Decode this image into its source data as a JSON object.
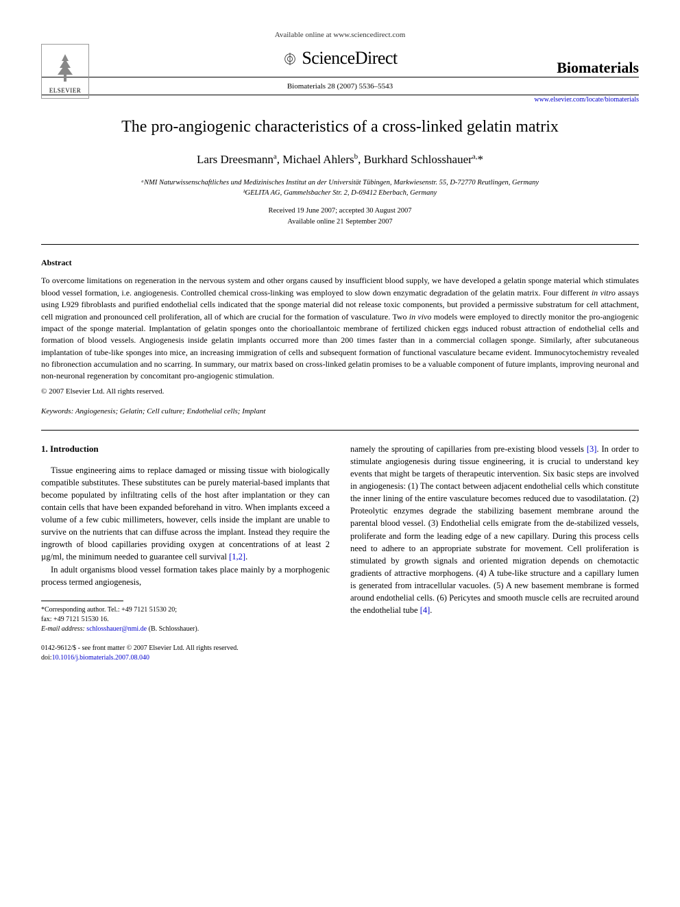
{
  "header": {
    "available_online": "Available online at www.sciencedirect.com",
    "sciencedirect": "ScienceDirect",
    "journal_ref": "Biomaterials 28 (2007) 5536–5543",
    "journal_brand": "Biomaterials",
    "journal_url": "www.elsevier.com/locate/biomaterials",
    "elsevier_label": "ELSEVIER"
  },
  "article": {
    "title": "The pro-angiogenic characteristics of a cross-linked gelatin matrix",
    "authors_html": "Lars Dreesmann<sup>a</sup>, Michael Ahlers<sup>b</sup>, Burkhard Schlosshauer<sup>a,</sup>*",
    "affiliations": [
      "ᵃNMI Naturwissenschaftliches und Medizinisches Institut an der Universität Tübingen, Markwiesenstr. 55, D-72770 Reutlingen, Germany",
      "ᵇGELITA AG, Gammelsbacher Str. 2, D-69412 Eberbach, Germany"
    ],
    "dates": [
      "Received 19 June 2007; accepted 30 August 2007",
      "Available online 21 September 2007"
    ]
  },
  "abstract": {
    "heading": "Abstract",
    "body": "To overcome limitations on regeneration in the nervous system and other organs caused by insufficient blood supply, we have developed a gelatin sponge material which stimulates blood vessel formation, i.e. angiogenesis. Controlled chemical cross-linking was employed to slow down enzymatic degradation of the gelatin matrix. Four different in vitro assays using L929 fibroblasts and purified endothelial cells indicated that the sponge material did not release toxic components, but provided a permissive substratum for cell attachment, cell migration and pronounced cell proliferation, all of which are crucial for the formation of vasculature. Two in vivo models were employed to directly monitor the pro-angiogenic impact of the sponge material. Implantation of gelatin sponges onto the chorioallantoic membrane of fertilized chicken eggs induced robust attraction of endothelial cells and formation of blood vessels. Angiogenesis inside gelatin implants occurred more than 200 times faster than in a commercial collagen sponge. Similarly, after subcutaneous implantation of tube-like sponges into mice, an increasing immigration of cells and subsequent formation of functional vasculature became evident. Immunocytochemistry revealed no fibronection accumulation and no scarring. In summary, our matrix based on cross-linked gelatin promises to be a valuable component of future implants, improving neuronal and non-neuronal regeneration by concomitant pro-angiogenic stimulation.",
    "copyright": "© 2007 Elsevier Ltd. All rights reserved.",
    "keywords_label": "Keywords:",
    "keywords": "Angiogenesis; Gelatin; Cell culture; Endothelial cells; Implant"
  },
  "introduction": {
    "heading": "1. Introduction",
    "col1_p1": "Tissue engineering aims to replace damaged or missing tissue with biologically compatible substitutes. These substitutes can be purely material-based implants that become populated by infiltrating cells of the host after implantation or they can contain cells that have been expanded beforehand in vitro. When implants exceed a volume of a few cubic millimeters, however, cells inside the implant are unable to survive on the nutrients that can diffuse across the implant. Instead they require the ingrowth of blood capillaries providing oxygen at concentrations of at least 2 µg/ml, the minimum needed to guarantee cell survival ",
    "col1_p1_cite": "[1,2]",
    "col1_p1_end": ".",
    "col1_p2": "In adult organisms blood vessel formation takes place mainly by a morphogenic process termed angiogenesis,",
    "col2_p1a": "namely the sprouting of capillaries from pre-existing blood vessels ",
    "col2_cite1": "[3]",
    "col2_p1b": ". In order to stimulate angiogenesis during tissue engineering, it is crucial to understand key events that might be targets of therapeutic intervention. Six basic steps are involved in angiogenesis: (1) The contact between adjacent endothelial cells which constitute the inner lining of the entire vasculature becomes reduced due to vasodilatation. (2) Proteolytic enzymes degrade the stabilizing basement membrane around the parental blood vessel. (3) Endothelial cells emigrate from the de-stabilized vessels, proliferate and form the leading edge of a new capillary. During this process cells need to adhere to an appropriate substrate for movement. Cell proliferation is stimulated by growth signals and oriented migration depends on chemotactic gradients of attractive morphogens. (4) A tube-like structure and a capillary lumen is generated from intracellular vacuoles. (5) A new basement membrane is formed around endothelial cells. (6) Pericytes and smooth muscle cells are recruited around the endothelial tube ",
    "col2_cite2": "[4]",
    "col2_p1c": "."
  },
  "footnote": {
    "corr": "*Corresponding author. Tel.: +49 7121 51530 20;",
    "fax": "fax: +49 7121 51530 16.",
    "email_label": "E-mail address:",
    "email": "schlosshauer@nmi.de",
    "email_name": "(B. Schlosshauer)."
  },
  "footer": {
    "line1": "0142-9612/$ - see front matter © 2007 Elsevier Ltd. All rights reserved.",
    "doi_label": "doi:",
    "doi": "10.1016/j.biomaterials.2007.08.040"
  },
  "colors": {
    "link": "#0000cc",
    "text": "#000000",
    "bg": "#ffffff"
  }
}
